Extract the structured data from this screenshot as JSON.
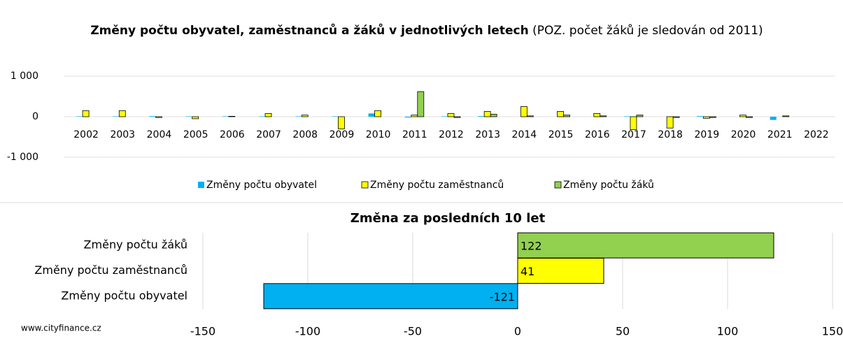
{
  "chart_data": [
    {
      "type": "bar",
      "title": "Změny počtu obyvatel, zaměstnanců a žáků v jednotlivých letech",
      "subtitle": "(POZ. počet žáků je sledován od 2011)",
      "categories": [
        "2002",
        "2003",
        "2004",
        "2005",
        "2006",
        "2007",
        "2008",
        "2009",
        "2010",
        "2011",
        "2012",
        "2013",
        "2014",
        "2015",
        "2016",
        "2017",
        "2018",
        "2019",
        "2020",
        "2021",
        "2022"
      ],
      "series": [
        {
          "name": "Změny počtu obyvatel",
          "color": "#00b0f0",
          "values": [
            10,
            10,
            15,
            10,
            10,
            10,
            10,
            10,
            80,
            -20,
            10,
            15,
            0,
            0,
            0,
            10,
            0,
            15,
            0,
            -80,
            null
          ]
        },
        {
          "name": "Změny počtu zaměstnanců",
          "color": "#ffff00",
          "values": [
            150,
            150,
            -20,
            -50,
            10,
            80,
            40,
            -300,
            150,
            40,
            80,
            130,
            250,
            130,
            80,
            -320,
            -280,
            -40,
            40,
            0,
            null
          ]
        },
        {
          "name": "Změny počtu žáků",
          "color": "#92d050",
          "values": [
            null,
            null,
            null,
            null,
            null,
            null,
            null,
            null,
            null,
            620,
            -20,
            60,
            20,
            40,
            20,
            40,
            -20,
            -20,
            -20,
            20,
            null
          ]
        }
      ],
      "ylim": [
        -1000,
        1000
      ],
      "yticks": [
        {
          "value": -1000,
          "label": "-1 000"
        },
        0,
        {
          "value": 1000,
          "label": "1 000"
        }
      ],
      "grid": true,
      "legend": "bottom"
    },
    {
      "type": "barh",
      "title": "Změna za posledních 10 let",
      "categories": [
        "Změny počtu žáků",
        "Změny počtu zaměstnanců",
        "Změny počtu obyvatel"
      ],
      "values": [
        122,
        41,
        -121
      ],
      "colors": [
        "#92d050",
        "#ffff00",
        "#00b0f0"
      ],
      "xlim": [
        -150,
        150
      ],
      "xticks": [
        -150,
        -100,
        -50,
        0,
        50,
        100,
        150
      ],
      "grid": true
    }
  ],
  "footer": "www.cityfinance.cz"
}
